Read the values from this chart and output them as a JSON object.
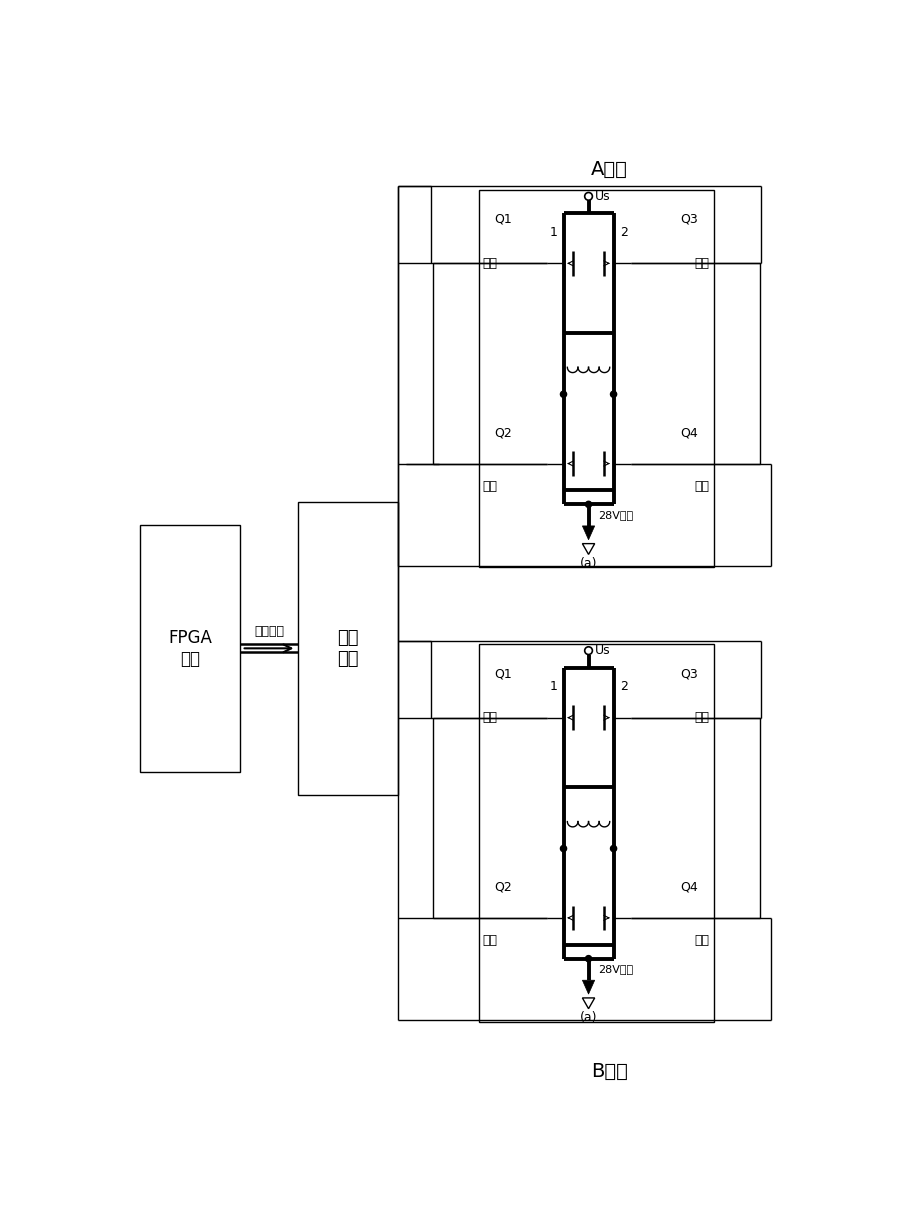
{
  "title_a": "A绕组",
  "title_b": "B绕组",
  "label_fpga": "FPGA\n器件",
  "label_signal": "信号\n放大",
  "label_parallel": "并行信号",
  "label_Q1": "Q1",
  "label_Q2": "Q2",
  "label_Q3": "Q3",
  "label_Q4": "Q4",
  "label_left_up": "左上",
  "label_right_up": "右上",
  "label_left_down": "左下",
  "label_right_down": "右下",
  "label_1": "1",
  "label_2": "2",
  "label_Us": "Us",
  "label_28V": "28V回线",
  "label_a": "(a)",
  "bg_color": "#ffffff",
  "line_color": "#000000",
  "thick_lw": 2.8,
  "thin_lw": 1.0,
  "mid_lw": 1.8
}
